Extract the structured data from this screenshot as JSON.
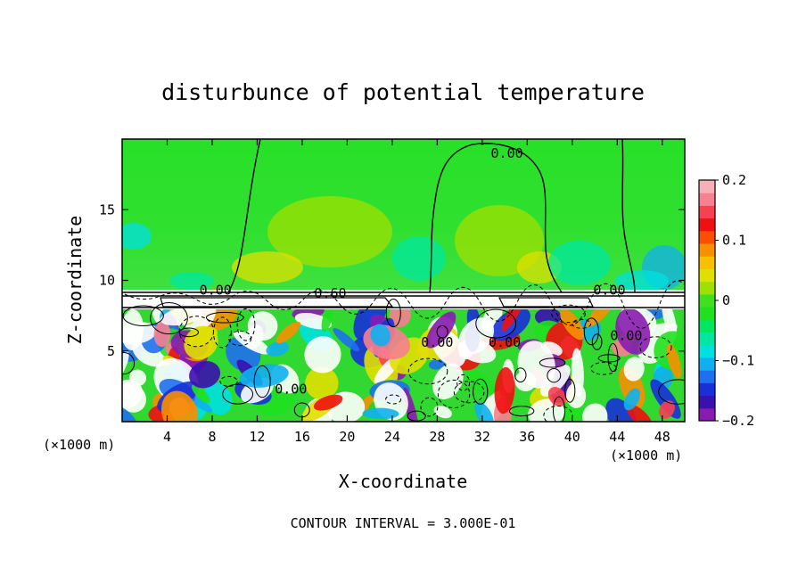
{
  "chart_data": {
    "type": "heatmap",
    "title": "disturbunce of potential temperature",
    "xlabel": "X-coordinate",
    "ylabel": "Z-coordinate",
    "x_unit_label": "(×1000 m)",
    "x_unit_label_right": "(×1000 m)",
    "xlim": [
      0,
      50
    ],
    "ylim": [
      0,
      20
    ],
    "x_ticks": [
      4,
      8,
      12,
      16,
      20,
      24,
      28,
      32,
      36,
      40,
      44,
      48
    ],
    "y_ticks": [
      5,
      10,
      15
    ],
    "colorbar": {
      "min": -0.2,
      "max": 0.2,
      "tick_values": [
        0.2,
        0.1,
        0,
        -0.1,
        -0.2
      ],
      "tick_labels": [
        "0.2",
        "0.1",
        "0",
        "−0.1",
        "−0.2"
      ],
      "colors": [
        "#8a1bb0",
        "#3a10b0",
        "#1830d8",
        "#1e70f0",
        "#10b0f0",
        "#00e0e0",
        "#00e8a0",
        "#00e860",
        "#20e020",
        "#40e020",
        "#a0e000",
        "#e0e000",
        "#f8c000",
        "#f89000",
        "#f85000",
        "#f01010",
        "#f84050",
        "#f88090",
        "#f8b0b8"
      ]
    },
    "contour_labels": [
      {
        "text": "0.00",
        "x": 34.2,
        "y": 19.0
      },
      {
        "text": "0.00",
        "x": 8.3,
        "y": 9.3
      },
      {
        "text": "0.60",
        "x": 18.5,
        "y": 9.1
      },
      {
        "text": "0.00",
        "x": 43.3,
        "y": 9.3
      },
      {
        "text": "0.00",
        "x": 28.0,
        "y": 5.6
      },
      {
        "text": "0.00",
        "x": 34.0,
        "y": 5.6
      },
      {
        "text": "0.00",
        "x": 44.8,
        "y": 6.1
      },
      {
        "text": "0.00",
        "x": 15.0,
        "y": 2.3
      }
    ],
    "footer": "CONTOUR INTERVAL = 3.000E-01"
  }
}
